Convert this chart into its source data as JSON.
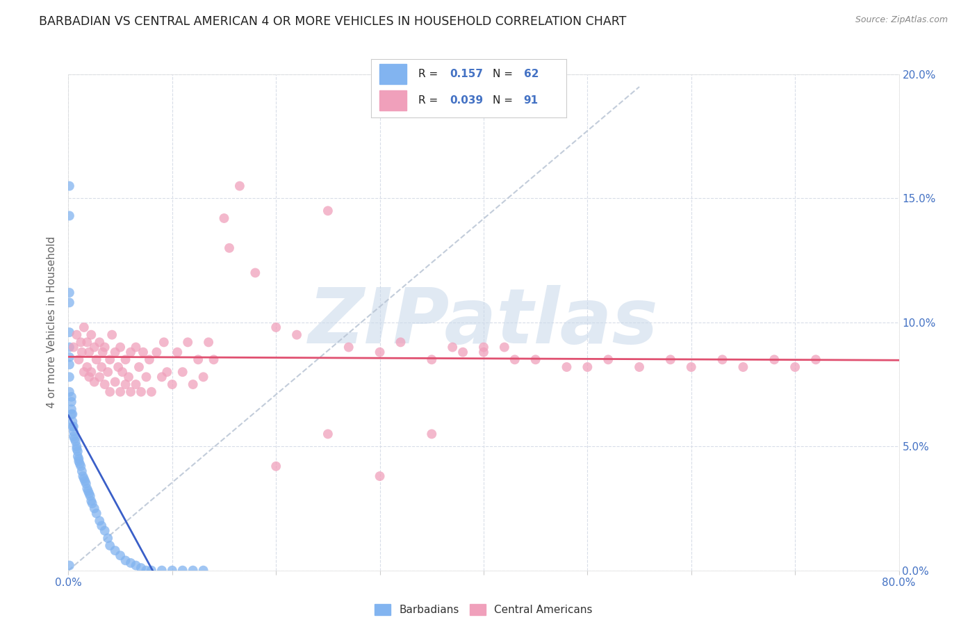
{
  "title": "BARBADIAN VS CENTRAL AMERICAN 4 OR MORE VEHICLES IN HOUSEHOLD CORRELATION CHART",
  "source": "Source: ZipAtlas.com",
  "ylabel": "4 or more Vehicles in Household",
  "xlim": [
    0,
    0.8
  ],
  "ylim": [
    0,
    0.2
  ],
  "xtick_positions": [
    0.0,
    0.1,
    0.2,
    0.3,
    0.4,
    0.5,
    0.6,
    0.7,
    0.8
  ],
  "xtick_labels": [
    "0.0%",
    "",
    "",
    "",
    "",
    "",
    "",
    "",
    "80.0%"
  ],
  "ytick_positions": [
    0.0,
    0.05,
    0.1,
    0.15,
    0.2
  ],
  "ytick_labels": [
    "0.0%",
    "5.0%",
    "10.0%",
    "15.0%",
    "20.0%"
  ],
  "legend_R1": "0.157",
  "legend_N1": "62",
  "legend_R2": "0.039",
  "legend_N2": "91",
  "barbadian_color": "#82b4f0",
  "central_american_color": "#f0a0bb",
  "barbadian_line_color": "#3a5fc8",
  "central_american_line_color": "#e05070",
  "diagonal_line_color": "#b8c4d4",
  "background_color": "#ffffff",
  "grid_color": "#d8dde8",
  "watermark": "ZIPatlas",
  "watermark_color": "#c8d8ea",
  "tick_label_color": "#4472c4",
  "ylabel_color": "#666666",
  "title_color": "#222222",
  "source_color": "#888888",
  "barbadian_x": [
    0.001,
    0.001,
    0.001,
    0.001,
    0.001,
    0.001,
    0.001,
    0.001,
    0.001,
    0.001,
    0.003,
    0.003,
    0.003,
    0.003,
    0.004,
    0.004,
    0.004,
    0.005,
    0.005,
    0.005,
    0.006,
    0.007,
    0.008,
    0.008,
    0.009,
    0.009,
    0.01,
    0.01,
    0.011,
    0.012,
    0.013,
    0.014,
    0.015,
    0.016,
    0.017,
    0.018,
    0.019,
    0.02,
    0.021,
    0.022,
    0.023,
    0.025,
    0.027,
    0.03,
    0.032,
    0.035,
    0.038,
    0.04,
    0.045,
    0.05,
    0.055,
    0.06,
    0.065,
    0.07,
    0.075,
    0.08,
    0.09,
    0.1,
    0.11,
    0.12,
    0.13,
    0.001
  ],
  "barbadian_y": [
    0.155,
    0.143,
    0.112,
    0.108,
    0.096,
    0.09,
    0.086,
    0.083,
    0.078,
    0.072,
    0.07,
    0.068,
    0.065,
    0.063,
    0.063,
    0.06,
    0.058,
    0.058,
    0.056,
    0.054,
    0.053,
    0.052,
    0.05,
    0.049,
    0.048,
    0.046,
    0.045,
    0.044,
    0.043,
    0.042,
    0.04,
    0.038,
    0.037,
    0.036,
    0.035,
    0.033,
    0.032,
    0.031,
    0.03,
    0.028,
    0.027,
    0.025,
    0.023,
    0.02,
    0.018,
    0.016,
    0.013,
    0.01,
    0.008,
    0.006,
    0.004,
    0.003,
    0.002,
    0.001,
    0.0,
    0.0,
    0.0,
    0.0,
    0.0,
    0.0,
    0.0,
    0.002
  ],
  "central_american_x": [
    0.005,
    0.008,
    0.01,
    0.012,
    0.013,
    0.015,
    0.015,
    0.018,
    0.018,
    0.02,
    0.02,
    0.022,
    0.022,
    0.025,
    0.025,
    0.027,
    0.03,
    0.03,
    0.032,
    0.033,
    0.035,
    0.035,
    0.038,
    0.04,
    0.04,
    0.042,
    0.045,
    0.045,
    0.048,
    0.05,
    0.05,
    0.052,
    0.055,
    0.055,
    0.058,
    0.06,
    0.06,
    0.065,
    0.065,
    0.068,
    0.07,
    0.072,
    0.075,
    0.078,
    0.08,
    0.085,
    0.09,
    0.092,
    0.095,
    0.1,
    0.105,
    0.11,
    0.115,
    0.12,
    0.125,
    0.13,
    0.135,
    0.14,
    0.15,
    0.155,
    0.165,
    0.18,
    0.2,
    0.22,
    0.25,
    0.27,
    0.3,
    0.32,
    0.35,
    0.37,
    0.4,
    0.42,
    0.45,
    0.48,
    0.5,
    0.52,
    0.55,
    0.58,
    0.6,
    0.63,
    0.65,
    0.68,
    0.7,
    0.72,
    0.38,
    0.4,
    0.43,
    0.35,
    0.3,
    0.25,
    0.2
  ],
  "central_american_y": [
    0.09,
    0.095,
    0.085,
    0.092,
    0.088,
    0.08,
    0.098,
    0.082,
    0.092,
    0.078,
    0.088,
    0.08,
    0.095,
    0.076,
    0.09,
    0.085,
    0.078,
    0.092,
    0.082,
    0.088,
    0.075,
    0.09,
    0.08,
    0.072,
    0.085,
    0.095,
    0.076,
    0.088,
    0.082,
    0.072,
    0.09,
    0.08,
    0.075,
    0.085,
    0.078,
    0.072,
    0.088,
    0.075,
    0.09,
    0.082,
    0.072,
    0.088,
    0.078,
    0.085,
    0.072,
    0.088,
    0.078,
    0.092,
    0.08,
    0.075,
    0.088,
    0.08,
    0.092,
    0.075,
    0.085,
    0.078,
    0.092,
    0.085,
    0.142,
    0.13,
    0.155,
    0.12,
    0.098,
    0.095,
    0.145,
    0.09,
    0.088,
    0.092,
    0.085,
    0.09,
    0.088,
    0.09,
    0.085,
    0.082,
    0.082,
    0.085,
    0.082,
    0.085,
    0.082,
    0.085,
    0.082,
    0.085,
    0.082,
    0.085,
    0.088,
    0.09,
    0.085,
    0.055,
    0.038,
    0.055,
    0.042
  ]
}
